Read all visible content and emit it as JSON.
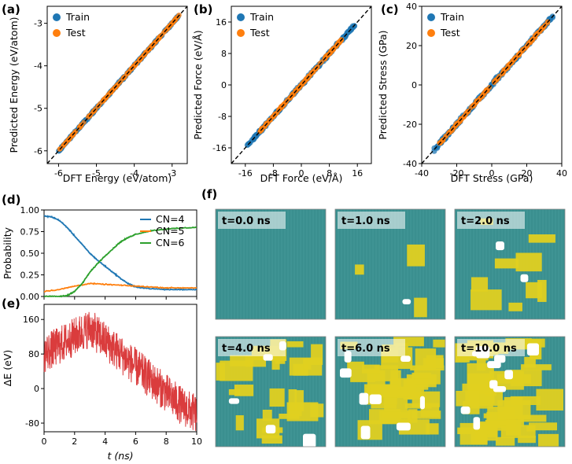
{
  "colors": {
    "train": "#1f77b4",
    "test": "#ff7f0e",
    "cn4": "#1f77b4",
    "cn5": "#ff7f0e",
    "cn6": "#2ca02c",
    "de": "#d62728",
    "snap_bg": "#3a8f8f",
    "snap_phase": "#e0d020"
  },
  "chart_data": [
    {
      "id": "a",
      "panel_label": "(a)",
      "type": "scatter",
      "xlabel": "DFT Energy (eV/atom)",
      "ylabel": "Predicted Energy (eV/atom)",
      "xlim": [
        -6.3,
        -2.6
      ],
      "ylim": [
        -6.3,
        -2.6
      ],
      "xticks": [
        -6,
        -5,
        -4,
        -3
      ],
      "yticks": [
        -6,
        -5,
        -4,
        -3
      ],
      "xticklabels": [
        "-6",
        "-5",
        "-4",
        "-3"
      ],
      "yticklabels": [
        "-6",
        "-5",
        "-4",
        "-3"
      ],
      "legend": [
        "Train",
        "Test"
      ],
      "series": [
        {
          "name": "Train",
          "range": [
            -6.0,
            -2.8
          ],
          "spread": 0.03
        },
        {
          "name": "Test",
          "range": [
            -6.0,
            -2.8
          ],
          "spread": 0.02
        }
      ]
    },
    {
      "id": "b",
      "panel_label": "(b)",
      "type": "scatter",
      "xlabel": "DFT Force (eV/Å)",
      "ylabel": "Predicted Force (eV/Å)",
      "xlim": [
        -20,
        20
      ],
      "ylim": [
        -20,
        20
      ],
      "xticks": [
        -16,
        -8,
        0,
        8,
        16
      ],
      "yticks": [
        -16,
        -8,
        0,
        8,
        16
      ],
      "xticklabels": [
        "-16",
        "-8",
        "0",
        "8",
        "16"
      ],
      "yticklabels": [
        "-16",
        "-8",
        "0",
        "8",
        "16"
      ],
      "legend": [
        "Train",
        "Test"
      ],
      "series": [
        {
          "name": "Train",
          "range": [
            -15.5,
            15.5
          ],
          "spread": 0.5
        },
        {
          "name": "Test",
          "range": [
            -12,
            12
          ],
          "spread": 0.35
        }
      ]
    },
    {
      "id": "c",
      "panel_label": "(c)",
      "type": "scatter",
      "xlabel": "DFT Stress (GPa)",
      "ylabel": "Predicted Stress (GPa)",
      "xlim": [
        -40,
        40
      ],
      "ylim": [
        -40,
        40
      ],
      "xticks": [
        -40,
        -20,
        0,
        20,
        40
      ],
      "yticks": [
        -40,
        -20,
        0,
        20,
        40
      ],
      "xticklabels": [
        "-40",
        "-20",
        "0",
        "20",
        "40"
      ],
      "yticklabels": [
        "-40",
        "-20",
        "0",
        "20",
        "40"
      ],
      "legend": [
        "Train",
        "Test"
      ],
      "series": [
        {
          "name": "Train",
          "range": [
            -33,
            35
          ],
          "spread": 1.4
        },
        {
          "name": "Test",
          "range": [
            -30,
            32
          ],
          "spread": 0.9
        }
      ]
    },
    {
      "id": "d",
      "panel_label": "(d)",
      "type": "line",
      "xlabel": "",
      "ylabel": "Probability",
      "xlim": [
        0,
        10
      ],
      "ylim": [
        0,
        1.0
      ],
      "yticks": [
        0.0,
        0.25,
        0.5,
        0.75,
        1.0
      ],
      "yticklabels": [
        "0.00",
        "0.25",
        "0.50",
        "0.75",
        "1.00"
      ],
      "legend": [
        "CN=4",
        "CN=5",
        "CN=6"
      ],
      "series": [
        {
          "name": "CN=4",
          "x": [
            0,
            0.5,
            1,
            1.5,
            2,
            2.5,
            3,
            3.5,
            4,
            4.5,
            5,
            5.5,
            6,
            7,
            8,
            9,
            10
          ],
          "y": [
            0.93,
            0.92,
            0.88,
            0.8,
            0.7,
            0.6,
            0.5,
            0.42,
            0.35,
            0.28,
            0.21,
            0.15,
            0.11,
            0.09,
            0.08,
            0.08,
            0.08
          ]
        },
        {
          "name": "CN=5",
          "x": [
            0,
            1,
            2,
            3,
            4,
            5,
            6,
            7,
            8,
            9,
            10
          ],
          "y": [
            0.06,
            0.08,
            0.12,
            0.15,
            0.14,
            0.13,
            0.12,
            0.11,
            0.1,
            0.1,
            0.1
          ]
        },
        {
          "name": "CN=6",
          "x": [
            0,
            1,
            1.5,
            2,
            2.5,
            3,
            3.5,
            4,
            4.5,
            5,
            5.5,
            6,
            7,
            8,
            9,
            10
          ],
          "y": [
            0.0,
            0.0,
            0.01,
            0.06,
            0.15,
            0.28,
            0.38,
            0.47,
            0.55,
            0.63,
            0.68,
            0.72,
            0.76,
            0.78,
            0.79,
            0.8
          ]
        }
      ]
    },
    {
      "id": "e",
      "panel_label": "(e)",
      "type": "line",
      "xlabel": "t (ns)",
      "ylabel": "ΔE (eV)",
      "xlim": [
        0,
        10
      ],
      "ylim": [
        -100,
        195
      ],
      "xticks": [
        0,
        2,
        4,
        6,
        8,
        10
      ],
      "xticklabels": [
        "0",
        "2",
        "4",
        "6",
        "8",
        "10"
      ],
      "yticks": [
        -80,
        0,
        80,
        160
      ],
      "yticklabels": [
        "-80",
        "0",
        "80",
        "160"
      ],
      "series": [
        {
          "name": "ΔE",
          "x": [
            0,
            1,
            2,
            3,
            4,
            5,
            6,
            7,
            8,
            9,
            10
          ],
          "y": [
            80,
            100,
            120,
            140,
            110,
            80,
            50,
            20,
            -10,
            -40,
            -60
          ],
          "noise": 45
        }
      ]
    }
  ],
  "panel_f": {
    "panel_label": "(f)",
    "snapshots": [
      {
        "label": "t=0.0 ns",
        "fraction": 0.0
      },
      {
        "label": "t=1.0 ns",
        "fraction": 0.05
      },
      {
        "label": "t=2.0 ns",
        "fraction": 0.15
      },
      {
        "label": "t=4.0 ns",
        "fraction": 0.45
      },
      {
        "label": "t=6.0 ns",
        "fraction": 0.7
      },
      {
        "label": "t=10.0 ns",
        "fraction": 0.8
      }
    ]
  }
}
